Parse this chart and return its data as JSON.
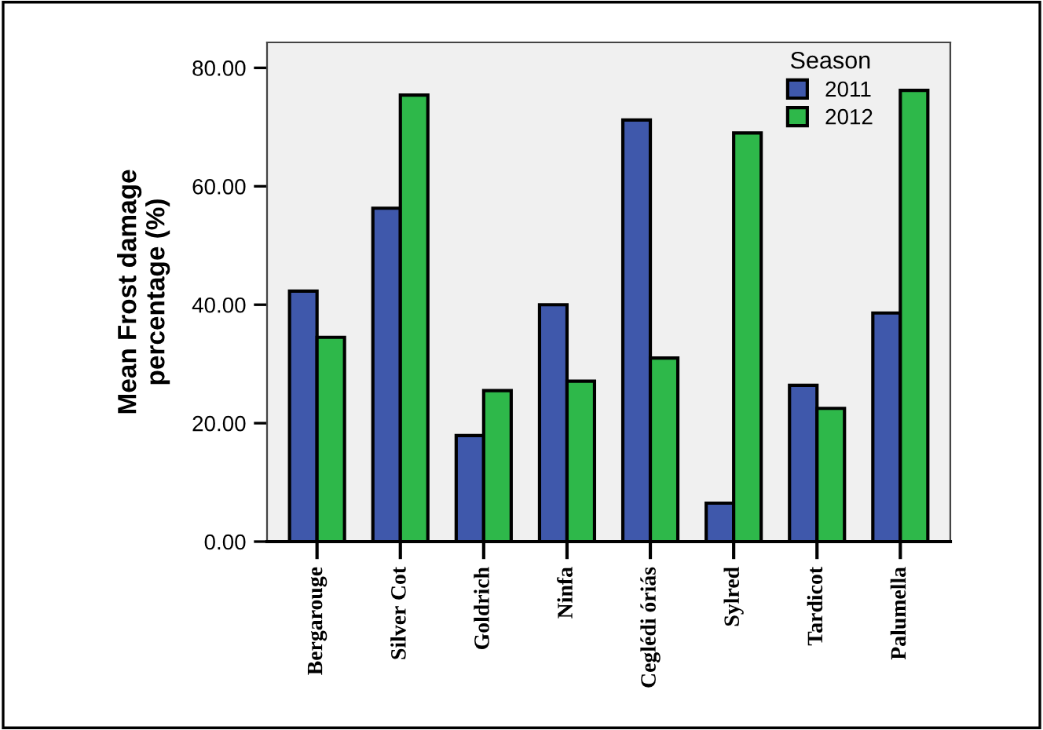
{
  "chart_data": {
    "type": "bar",
    "ylabel": "Mean Frost damage\npercentage (%)",
    "legend_title": "Season",
    "legend": "top right",
    "grid": false,
    "categories": [
      "Bergarouge",
      "Silver Cot",
      "Goldrich",
      "Ninfa",
      "Ceglédi óriás",
      "Sylred",
      "Tardicot",
      "Palumella"
    ],
    "ylim": [
      0,
      84.3
    ],
    "yticks": [
      {
        "value": 0,
        "label": "0.00"
      },
      {
        "value": 20,
        "label": "20.00"
      },
      {
        "value": 40,
        "label": "40.00"
      },
      {
        "value": 60,
        "label": "60.00"
      },
      {
        "value": 80,
        "label": "80.00"
      }
    ],
    "series": [
      {
        "name": "2011",
        "color": "#3f58ab",
        "values": [
          42.3,
          56.3,
          17.9,
          40.0,
          71.2,
          6.5,
          26.4,
          38.6
        ]
      },
      {
        "name": "2012",
        "color": "#2eb84a",
        "values": [
          34.5,
          75.4,
          25.5,
          27.1,
          31.0,
          69.0,
          22.5,
          76.2
        ]
      }
    ]
  }
}
